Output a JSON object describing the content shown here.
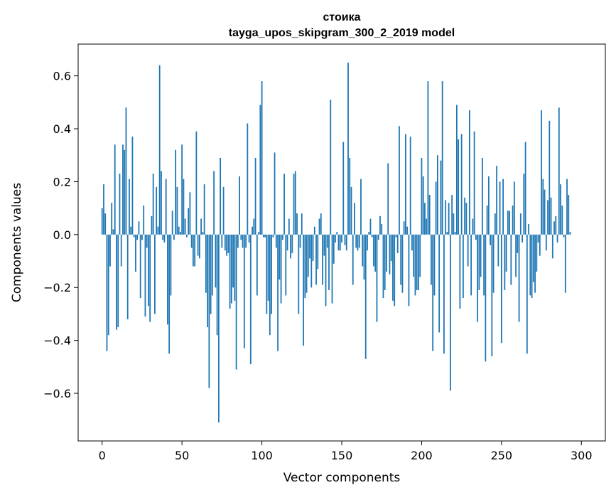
{
  "chart_data": {
    "type": "bar",
    "title": "стоика",
    "subtitle": "tayga_upos_skipgram_300_2_2019 model",
    "xlabel": "Vector components",
    "ylabel": "Components values",
    "xlim": [
      -15,
      315
    ],
    "ylim": [
      -0.78,
      0.72
    ],
    "xticks": [
      0,
      50,
      100,
      150,
      200,
      250,
      300
    ],
    "xtick_labels": [
      "0",
      "50",
      "100",
      "150",
      "200",
      "250",
      "300"
    ],
    "yticks": [
      -0.6,
      -0.4,
      -0.2,
      0.0,
      0.2,
      0.4,
      0.6
    ],
    "ytick_labels": [
      "−0.6",
      "−0.4",
      "−0.2",
      "0.0",
      "0.2",
      "0.4",
      "0.6"
    ],
    "grid": false,
    "bar_color": "#1f77b4",
    "values": [
      0.1,
      0.19,
      0.08,
      -0.44,
      -0.38,
      -0.12,
      0.12,
      0.02,
      0.34,
      -0.36,
      -0.35,
      0.23,
      -0.12,
      0.34,
      0.32,
      0.48,
      -0.32,
      0.21,
      0.03,
      0.37,
      -0.01,
      -0.14,
      -0.02,
      0.05,
      -0.24,
      -0.02,
      0.11,
      -0.31,
      -0.05,
      -0.27,
      -0.33,
      0.07,
      0.23,
      -0.3,
      0.18,
      0.03,
      0.64,
      0.24,
      -0.02,
      -0.03,
      0.21,
      -0.34,
      -0.45,
      -0.23,
      0.09,
      -0.02,
      0.32,
      0.18,
      0.03,
      0.01,
      0.34,
      0.21,
      0.06,
      -0.01,
      0.1,
      0.16,
      -0.05,
      -0.12,
      -0.12,
      0.39,
      -0.08,
      -0.09,
      0.06,
      0.01,
      0.19,
      -0.22,
      -0.35,
      -0.58,
      -0.3,
      -0.23,
      0.24,
      -0.2,
      -0.38,
      -0.71,
      0.29,
      -0.05,
      0.18,
      -0.06,
      -0.08,
      -0.07,
      -0.28,
      -0.26,
      -0.2,
      -0.25,
      -0.51,
      -0.05,
      0.22,
      -0.02,
      -0.05,
      -0.43,
      -0.05,
      0.42,
      -0.03,
      -0.49,
      0.03,
      0.06,
      0.29,
      -0.23,
      0.01,
      0.49,
      0.58,
      -0.01,
      -0.01,
      -0.3,
      -0.25,
      -0.38,
      -0.3,
      -0.01,
      0.31,
      -0.05,
      -0.44,
      -0.17,
      -0.26,
      -0.02,
      0.23,
      -0.23,
      -0.06,
      0.06,
      -0.09,
      -0.07,
      0.23,
      0.24,
      0.08,
      -0.3,
      -0.05,
      0.08,
      -0.42,
      -0.24,
      -0.22,
      -0.16,
      -0.09,
      -0.2,
      -0.1,
      0.03,
      -0.19,
      -0.13,
      0.06,
      0.08,
      -0.19,
      -0.08,
      -0.27,
      -0.05,
      -0.21,
      0.51,
      -0.26,
      -0.11,
      -0.03,
      0.01,
      -0.06,
      -0.06,
      -0.03,
      0.35,
      -0.04,
      -0.06,
      0.65,
      0.29,
      0.18,
      -0.19,
      0.12,
      -0.05,
      -0.06,
      -0.05,
      0.21,
      -0.12,
      -0.17,
      -0.47,
      -0.06,
      0.01,
      0.06,
      -0.01,
      -0.12,
      -0.14,
      -0.33,
      -0.02,
      0.07,
      0.04,
      -0.24,
      -0.21,
      -0.14,
      0.27,
      -0.15,
      -0.1,
      -0.25,
      -0.27,
      -0.01,
      -0.07,
      0.41,
      -0.19,
      -0.22,
      0.05,
      0.38,
      0.03,
      -0.27,
      0.37,
      -0.06,
      -0.16,
      -0.23,
      -0.21,
      -0.21,
      -0.16,
      0.29,
      0.22,
      0.12,
      0.06,
      0.58,
      0.15,
      -0.19,
      -0.44,
      -0.23,
      0.2,
      0.3,
      -0.37,
      0.28,
      0.58,
      -0.45,
      0.13,
      0.01,
      0.12,
      -0.59,
      0.15,
      0.08,
      0.01,
      0.49,
      0.36,
      -0.28,
      0.38,
      -0.24,
      0.14,
      0.12,
      -0.12,
      0.47,
      -0.23,
      0.06,
      0.39,
      -0.02,
      -0.33,
      -0.21,
      -0.16,
      0.29,
      -0.23,
      -0.48,
      0.11,
      0.22,
      -0.04,
      -0.46,
      -0.22,
      0.08,
      0.26,
      -0.12,
      0.2,
      -0.41,
      0.21,
      -0.21,
      -0.14,
      0.09,
      0.09,
      -0.19,
      0.11,
      0.2,
      -0.16,
      -0.07,
      -0.33,
      0.08,
      -0.03,
      0.23,
      0.35,
      -0.45,
      0.04,
      -0.23,
      -0.24,
      -0.18,
      -0.22,
      -0.14,
      -0.03,
      -0.08,
      0.47,
      0.21,
      0.17,
      -0.06,
      0.13,
      0.43,
      0.14,
      -0.09,
      0.05,
      0.07,
      -0.03,
      0.48,
      0.19,
      0.11,
      -0.01,
      -0.22,
      0.21,
      0.15,
      0.01
    ]
  }
}
